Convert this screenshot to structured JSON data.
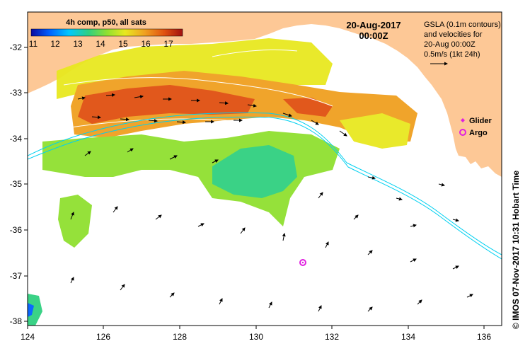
{
  "map": {
    "colorbar_label": "4h comp, p50, all sats",
    "colorbar_ticks": [
      "11",
      "12",
      "13",
      "14",
      "15",
      "16",
      "17"
    ],
    "colorbar_colors": [
      "#0a0aa0",
      "#0060ff",
      "#00c8ff",
      "#30d080",
      "#90e030",
      "#e8e820",
      "#f0a020",
      "#e05010",
      "#a01010"
    ],
    "date": "20-Aug-2017",
    "time": "00:00Z",
    "legend_text": [
      "GSLA (0.1m contours)",
      "and velocities for",
      "20-Aug 00:00Z",
      "0.5m/s (1kt 24h)"
    ],
    "markers": [
      {
        "label": "Glider",
        "color": "#e020e0",
        "symbol": "diamond-icon"
      },
      {
        "label": "Argo",
        "color": "#e020e0",
        "symbol": "target-icon"
      }
    ],
    "credit": "© IMOS 07-Nov-2017 10:31 Hobart Time",
    "x_ticks": [
      "124",
      "126",
      "128",
      "130",
      "132",
      "134",
      "136"
    ],
    "y_ticks": [
      "-32",
      "-33",
      "-34",
      "-35",
      "-36",
      "-37",
      "-38"
    ],
    "land_color": "#fdc896",
    "argo_float": {
      "lon": 131.3,
      "lat": -36.7
    }
  }
}
